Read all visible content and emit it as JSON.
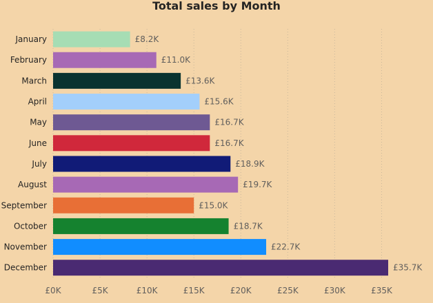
{
  "chart_data": {
    "type": "bar",
    "orientation": "horizontal",
    "title": "Total sales by Month",
    "categories": [
      "January",
      "February",
      "March",
      "April",
      "May",
      "June",
      "July",
      "August",
      "September",
      "October",
      "November",
      "December"
    ],
    "values": [
      8.2,
      11.0,
      13.6,
      15.6,
      16.7,
      16.7,
      18.9,
      19.7,
      15.0,
      18.7,
      22.7,
      35.7
    ],
    "value_unit": "£K",
    "data_labels": [
      "£8.2K",
      "£11.0K",
      "£13.6K",
      "£15.6K",
      "£16.7K",
      "£16.7K",
      "£18.9K",
      "£19.7K",
      "£15.0K",
      "£18.7K",
      "£22.7K",
      "£35.7K"
    ],
    "colors": [
      "#A6DDB4",
      "#A769B5",
      "#0A3330",
      "#A3CFFB",
      "#6E5993",
      "#D0283B",
      "#111B77",
      "#A769B5",
      "#E86F36",
      "#15822F",
      "#118DFF",
      "#4A2A72"
    ],
    "xlim": [
      0,
      35.7
    ],
    "xticks": [
      0,
      5,
      10,
      15,
      20,
      25,
      30,
      35
    ],
    "xtick_labels": [
      "£0K",
      "£5K",
      "£10K",
      "£15K",
      "£20K",
      "£25K",
      "£30K",
      "£35K"
    ],
    "xlabel": "",
    "ylabel": "",
    "grid": "vertical dotted",
    "background": "#F4D5A9"
  }
}
